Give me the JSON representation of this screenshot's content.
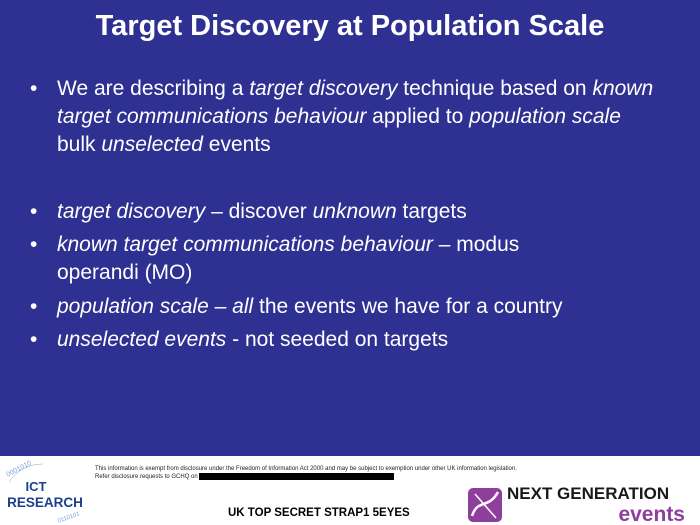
{
  "slide": {
    "title": "Target Discovery at Population Scale",
    "bullets": [
      {
        "parts": [
          {
            "t": "We are describing a ",
            "i": false
          },
          {
            "t": "target discovery",
            "i": true
          },
          {
            "t": " technique based on ",
            "i": false
          },
          {
            "t": "known target communications behaviour",
            "i": true
          },
          {
            "t": " applied to ",
            "i": false
          },
          {
            "t": "population scale",
            "i": true
          },
          {
            "t": " bulk ",
            "i": false
          },
          {
            "t": "unselected",
            "i": true
          },
          {
            "t": " events",
            "i": false
          }
        ]
      },
      {
        "parts": [
          {
            "t": "target discovery",
            "i": true
          },
          {
            "t": " – discover ",
            "i": false
          },
          {
            "t": "unknown",
            "i": true
          },
          {
            "t": " targets",
            "i": false
          }
        ]
      },
      {
        "parts": [
          {
            "t": "known target communications behaviour",
            "i": true
          },
          {
            "t": " – modus operandi (MO)",
            "i": false
          }
        ]
      },
      {
        "parts": [
          {
            "t": "population scale",
            "i": true
          },
          {
            "t": " – ",
            "i": false
          },
          {
            "t": "all",
            "i": true
          },
          {
            "t": " the events we have for a country",
            "i": false
          }
        ]
      },
      {
        "parts": [
          {
            "t": "unselected events",
            "i": true
          },
          {
            "t": " -  not seeded on targets",
            "i": false
          }
        ]
      }
    ]
  },
  "footer": {
    "legal_line1": "This information is exempt from disclosure under the Freedom of Information Act 2000 and may be subject to exemption under other UK information legislation.",
    "legal_line2": "Refer disclosure requests to GCHQ on",
    "classification": "UK TOP SECRET STRAP1 5EYES",
    "ict_logo": {
      "line1": "ICT",
      "line2": "RESEARCH",
      "arc_top": "0001010",
      "arc_bottom": "0110101"
    },
    "ng_logo": {
      "line1": "NEXT GENERATION",
      "line2": "events"
    }
  },
  "colors": {
    "background": "#2e3192",
    "text": "#ffffff",
    "brand_purple": "#8e3f9c"
  }
}
